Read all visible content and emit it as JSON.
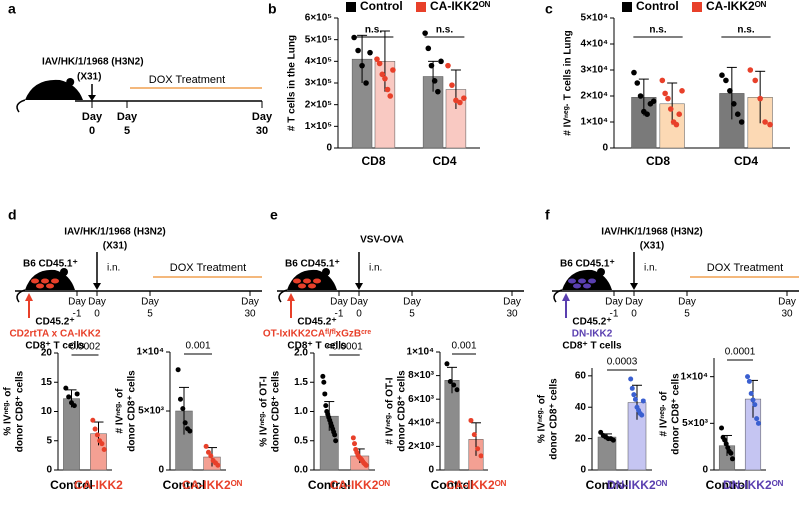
{
  "chart_data": [
    {
      "type": "grouped-bar",
      "panel": "b",
      "ylabel": [
        "# T cells in the Lung"
      ],
      "categories": [
        "CD8",
        "CD4"
      ],
      "series": [
        {
          "name": "Control",
          "color": "#8c8c8c",
          "point_color": "#000000",
          "values": [
            410000,
            330000
          ],
          "errors": [
            110000,
            70000
          ],
          "points": [
            [
              510000,
              450000,
              380000,
              300000,
              440000
            ],
            [
              530000,
              460000,
              380000,
              310000,
              260000,
              400000
            ]
          ]
        },
        {
          "name": "CA-IKK2ᴼᴺ",
          "color": "#f9c9c2",
          "point_color": "#e8402a",
          "values": [
            400000,
            270000
          ],
          "errors": [
            140000,
            90000
          ],
          "points": [
            [
              410000,
              390000,
              340000,
              320000,
              270000,
              240000,
              360000
            ],
            [
              380000,
              290000,
              220000,
              210000,
              230000
            ]
          ]
        }
      ],
      "annotations": [
        "n.s.",
        "n.s."
      ],
      "ylim": [
        0,
        600000
      ],
      "yticks": [
        0,
        {
          "value": 100000,
          "label": "1×10⁵"
        },
        {
          "value": 200000,
          "label": "2×10⁵"
        },
        {
          "value": 300000,
          "label": "3×10⁵"
        },
        {
          "value": 400000,
          "label": "4×10⁵"
        },
        {
          "value": 500000,
          "label": "5×10⁵"
        },
        {
          "value": 600000,
          "label": "6×10⁵"
        }
      ]
    },
    {
      "type": "grouped-bar",
      "panel": "c",
      "ylabel": [
        "# IVⁿᵉᵍ· T cells in Lung"
      ],
      "categories": [
        "CD8",
        "CD4"
      ],
      "series": [
        {
          "name": "Control",
          "color": "#7a7a7a",
          "point_color": "#000000",
          "values": [
            19500,
            21000
          ],
          "errors": [
            7000,
            10000
          ],
          "points": [
            [
              29000,
              25000,
              20000,
              14000,
              13000,
              17000,
              18000
            ],
            [
              28000,
              26000,
              22000,
              17000,
              13000,
              10000
            ]
          ]
        },
        {
          "name": "CA-IKK2ᴼᴺ",
          "color": "#fcd9b4",
          "point_color": "#e8402a",
          "values": [
            17000,
            19500
          ],
          "errors": [
            8000,
            10000
          ],
          "points": [
            [
              26000,
              21000,
              19000,
              15000,
              10000,
              9000,
              13000,
              22000
            ],
            [
              30000,
              26000,
              19000,
              10000,
              9000
            ]
          ]
        }
      ],
      "annotations": [
        "n.s.",
        "n.s."
      ],
      "ylim": [
        0,
        50000
      ],
      "yticks": [
        0,
        {
          "value": 10000,
          "label": "1×10⁴"
        },
        {
          "value": 20000,
          "label": "2×10⁴"
        },
        {
          "value": 30000,
          "label": "3×10⁴"
        },
        {
          "value": 40000,
          "label": "4×10⁴"
        },
        {
          "value": 50000,
          "label": "5×10⁴"
        }
      ]
    },
    {
      "type": "bar",
      "ylabel": [
        "% IVⁿᵉᵍ· of",
        "donor CD8⁺ cells"
      ],
      "categories": [
        "Control",
        "CA-IKK2"
      ],
      "colors": [
        "#8c8c8c",
        "#f4a093"
      ],
      "point_colors": [
        "#000000",
        "#e8402a"
      ],
      "category_colors": [
        "#000000",
        "#e8402a"
      ],
      "values": [
        12.2,
        6.2
      ],
      "errors": [
        1.5,
        2
      ],
      "points": [
        [
          14,
          12.5,
          11.5,
          11,
          13
        ],
        [
          8.5,
          7,
          6,
          5,
          4.5,
          3.5
        ]
      ],
      "p_value": "0.0002",
      "ylim": [
        0,
        20
      ],
      "yticks": [
        0,
        5,
        10,
        15,
        20
      ]
    },
    {
      "type": "bar",
      "ylabel": [
        "# IVⁿᵉᵍ· of",
        "donor CD8⁺ cells"
      ],
      "categories": [
        "Control",
        "CA-IKK2ᴼᴺ"
      ],
      "colors": [
        "#8c8c8c",
        "#f4a093"
      ],
      "point_colors": [
        "#000000",
        "#e8402a"
      ],
      "category_colors": [
        "#000000",
        "#e8402a"
      ],
      "values": [
        5000,
        1100
      ],
      "errors": [
        2000,
        800
      ],
      "points": [
        [
          8500,
          6000,
          5200,
          4000,
          3500,
          3300
        ],
        [
          2000,
          1500,
          1200,
          800,
          600,
          400
        ]
      ],
      "p_value": "0.001",
      "ylim": [
        0,
        10000
      ],
      "yticks": [
        0,
        {
          "value": 5000,
          "label": "5×10³"
        },
        {
          "value": 10000,
          "label": "1×10⁴"
        }
      ]
    },
    {
      "type": "bar",
      "ylabel": [
        "% IVⁿᵉᵍ· of OT-I",
        "donor CD8⁺ cells"
      ],
      "categories": [
        "Control",
        "CA-IKK2ᴼᴺ"
      ],
      "colors": [
        "#8c8c8c",
        "#f4a093"
      ],
      "point_colors": [
        "#000000",
        "#e8402a"
      ],
      "category_colors": [
        "#000000",
        "#e8402a"
      ],
      "values": [
        0.92,
        0.24
      ],
      "errors": [
        0.25,
        0.12
      ],
      "points": [
        [
          1.6,
          1.5,
          1.3,
          1.1,
          1.0,
          0.95,
          0.9,
          0.85,
          0.8,
          0.75,
          0.7,
          0.65,
          0.6,
          0.5
        ],
        [
          0.55,
          0.45,
          0.35,
          0.3,
          0.25,
          0.22,
          0.2,
          0.18,
          0.15,
          0.12,
          0.1,
          0.08
        ]
      ],
      "p_value": "<0.0001",
      "ylim": [
        0,
        2
      ],
      "yticks": [
        {
          "value": 0,
          "label": "0.0"
        },
        0.5,
        {
          "value": 1,
          "label": "1.0"
        },
        1.5,
        {
          "value": 2,
          "label": "2.0"
        }
      ]
    },
    {
      "type": "bar",
      "ylabel": [
        "# IVⁿᵉᵍ· of OT-I",
        "donor CD8⁺ cells"
      ],
      "categories": [
        "Control",
        "CA-IKK2ᴼᴺ"
      ],
      "colors": [
        "#8c8c8c",
        "#f4a093"
      ],
      "point_colors": [
        "#000000",
        "#e8402a"
      ],
      "category_colors": [
        "#000000",
        "#e8402a"
      ],
      "values": [
        7600,
        2600
      ],
      "errors": [
        1100,
        1400
      ],
      "points": [
        [
          9000,
          7500,
          7200,
          6800
        ],
        [
          4200,
          3000,
          1800,
          1200
        ]
      ],
      "p_value": "0.001",
      "ylim": [
        0,
        10000
      ],
      "yticks": [
        0,
        {
          "value": 2000,
          "label": "2×10³"
        },
        {
          "value": 4000,
          "label": "4×10³"
        },
        {
          "value": 6000,
          "label": "6×10³"
        },
        {
          "value": 8000,
          "label": "8×10³"
        },
        {
          "value": 10000,
          "label": "1×10⁴"
        }
      ]
    },
    {
      "type": "bar",
      "ylabel": [
        "% IVⁿᵉᵍ· of",
        "donor CD8⁺ cells"
      ],
      "categories": [
        "Control",
        "DN-IKK2ᴼᴺ"
      ],
      "colors": [
        "#8c8c8c",
        "#c5c5f2"
      ],
      "point_colors": [
        "#000000",
        "#3a5fd0"
      ],
      "category_colors": [
        "#000000",
        "#5a3fb0"
      ],
      "values": [
        21,
        43
      ],
      "errors": [
        2,
        11
      ],
      "points": [
        [
          24,
          22,
          21,
          20,
          20,
          19
        ],
        [
          58,
          52,
          48,
          45,
          40,
          38,
          36,
          35,
          44
        ]
      ],
      "p_value": "0.0003",
      "ylim": [
        0,
        65
      ],
      "yticks": [
        0,
        20,
        40,
        60
      ]
    },
    {
      "type": "bar",
      "ylabel": [
        "# IVⁿᵉᵍ· of",
        "donor CD8⁺ cells"
      ],
      "categories": [
        "Control",
        "DN-IKK2ᴼᴺ"
      ],
      "colors": [
        "#8c8c8c",
        "#c5c5f2"
      ],
      "point_colors": [
        "#000000",
        "#3a5fd0"
      ],
      "category_colors": [
        "#000000",
        "#5a3fb0"
      ],
      "values": [
        2600,
        7600
      ],
      "errors": [
        1100,
        2000
      ],
      "points": [
        [
          4500,
          3500,
          3200,
          2800,
          2400,
          2000,
          1800,
          1200
        ],
        [
          10000,
          9500,
          8200,
          7500,
          7000,
          5500,
          5000
        ]
      ],
      "p_value": "0.0001",
      "ylim": [
        0,
        12000
      ],
      "yticks": [
        0,
        {
          "value": 5000,
          "label": "5×10³"
        },
        {
          "value": 10000,
          "label": "1×10⁴"
        }
      ]
    }
  ],
  "diagrams": [
    {
      "panel": "a",
      "virus": [
        "IAV/HK/1/1968 (H3N2)",
        "(X31)"
      ],
      "treatment": "DOX Treatment",
      "day_word": "Day",
      "days": [
        "0",
        "5",
        "30"
      ]
    },
    {
      "panel": "d",
      "virus": [
        "IAV/HK/1/1968 (H3N2)",
        "(X31)"
      ],
      "host": "B6 CD45.1⁺",
      "route": "i.n.",
      "treatment": "DOX Treatment",
      "day_word": "Day",
      "days": [
        "-1",
        "0",
        "5",
        "30"
      ],
      "donor": [
        "CD45.2⁺",
        "CD2rtTA x CA-IKK2",
        "CD8⁺ T cells"
      ],
      "donor_color": "#e8402a"
    },
    {
      "panel": "e",
      "virus": [
        "VSV-OVA"
      ],
      "host": "B6 CD45.1⁺",
      "route": "i.n.",
      "day_word": "Day",
      "days": [
        "-1",
        "0",
        "5",
        "30"
      ],
      "donor": [
        "CD45.2⁺",
        "OT-IxIKK2CAᶠˡ/ᶠˡxGzBᶜʳᵉ",
        "CD8⁺ T cells"
      ],
      "donor_color": "#e8402a"
    },
    {
      "panel": "f",
      "virus": [
        "IAV/HK/1/1968 (H3N2)",
        "(X31)"
      ],
      "host": "B6 CD45.1⁺",
      "route": "i.n.",
      "treatment": "DOX Treatment",
      "day_word": "Day",
      "days": [
        "-1",
        "0",
        "5",
        "30"
      ],
      "donor": [
        "CD45.2⁺",
        "DN-IKK2",
        "CD8⁺ T cells"
      ],
      "donor_color": "#5a3fb0"
    }
  ]
}
